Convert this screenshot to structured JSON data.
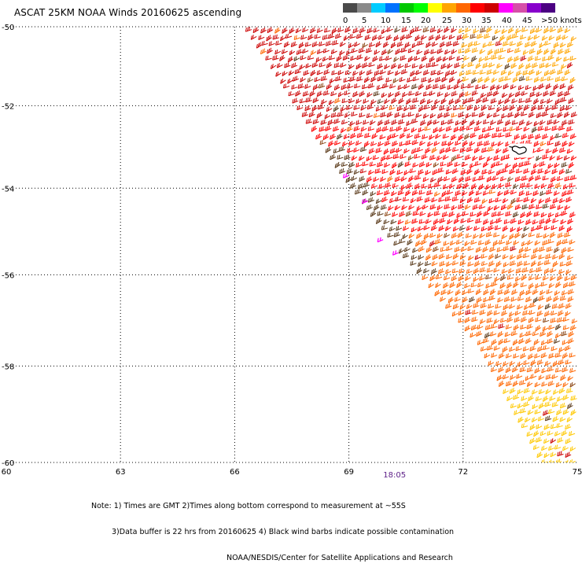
{
  "title": "ASCAT 25KM NOAA Winds 20160625 ascending",
  "legend": {
    "colors": [
      "#4a4a4a",
      "#8a8a8a",
      "#00ccff",
      "#0072ff",
      "#00c800",
      "#00ff00",
      "#ffff00",
      "#ffa500",
      "#ff6600",
      "#ff0000",
      "#cc0000",
      "#ff00ff",
      "#d64fa8",
      "#8800cc",
      "#4b0082"
    ],
    "labels": [
      "0",
      "5",
      "10",
      "15",
      "20",
      "25",
      "30",
      "35",
      "40",
      "45",
      ">50 knots"
    ]
  },
  "notes": {
    "line1": "Note: 1) Times are GMT 2)Times along bottom correspond to measurement at ~55S",
    "line2": "3)Data buffer is 22 hrs from 20160625 4) Black wind barbs indicate possible contamination",
    "line3": "NOAA/NESDIS/Center for Satellite Applications and Research"
  },
  "time_label": "18:05",
  "chart_data": {
    "type": "scatter",
    "title": "ASCAT 25KM NOAA Winds 20160625 ascending",
    "xlabel": "",
    "ylabel": "",
    "x_ticks": [
      60,
      63,
      66,
      69,
      72,
      75
    ],
    "y_ticks": [
      -50,
      -52,
      -54,
      -56,
      -58,
      -60
    ],
    "xlim": [
      60,
      75
    ],
    "ylim": [
      -60,
      -50
    ],
    "y_projection": "mercator",
    "grid": true,
    "legend": "top-right",
    "legend_unit": "knots",
    "swath_left_edge": [
      [
        66.4,
        -50.0
      ],
      [
        68.8,
        -53.5
      ],
      [
        70.5,
        -55.5
      ],
      [
        72.5,
        -57.5
      ],
      [
        74.2,
        -60.0
      ]
    ],
    "time_annotation": {
      "lon": 70.2,
      "text": "18:05"
    },
    "wind_field_regions": [
      {
        "name": "northern band",
        "lat_range": [
          -50,
          -52.5
        ],
        "speed_knots": 38,
        "color": "#cc0000"
      },
      {
        "name": "north-east edge",
        "lat_range": [
          -50,
          -51.5
        ],
        "speed_knots": 30,
        "color": "#ffa500"
      },
      {
        "name": "central band",
        "lat_range": [
          -52.5,
          -55
        ],
        "speed_knots": 36,
        "color": "#ff0000"
      },
      {
        "name": "swath west edge",
        "lat_range": [
          -53,
          -56
        ],
        "speed_knots": 42,
        "color": "#5a3a1a"
      },
      {
        "name": "southern band",
        "lat_range": [
          -55,
          -59
        ],
        "speed_knots": 32,
        "color": "#ff6600"
      },
      {
        "name": "south-east corner",
        "lat_range": [
          -58.5,
          -60
        ],
        "speed_knots": 25,
        "color": "#ffc800"
      }
    ],
    "flagged_barbs": [
      [
        69.0,
        -53.7
      ],
      [
        69.5,
        -54.3
      ],
      [
        69.9,
        -55.2
      ],
      [
        70.3,
        -55.5
      ]
    ],
    "island_outline_center": [
      73.5,
      -53.1
    ]
  }
}
